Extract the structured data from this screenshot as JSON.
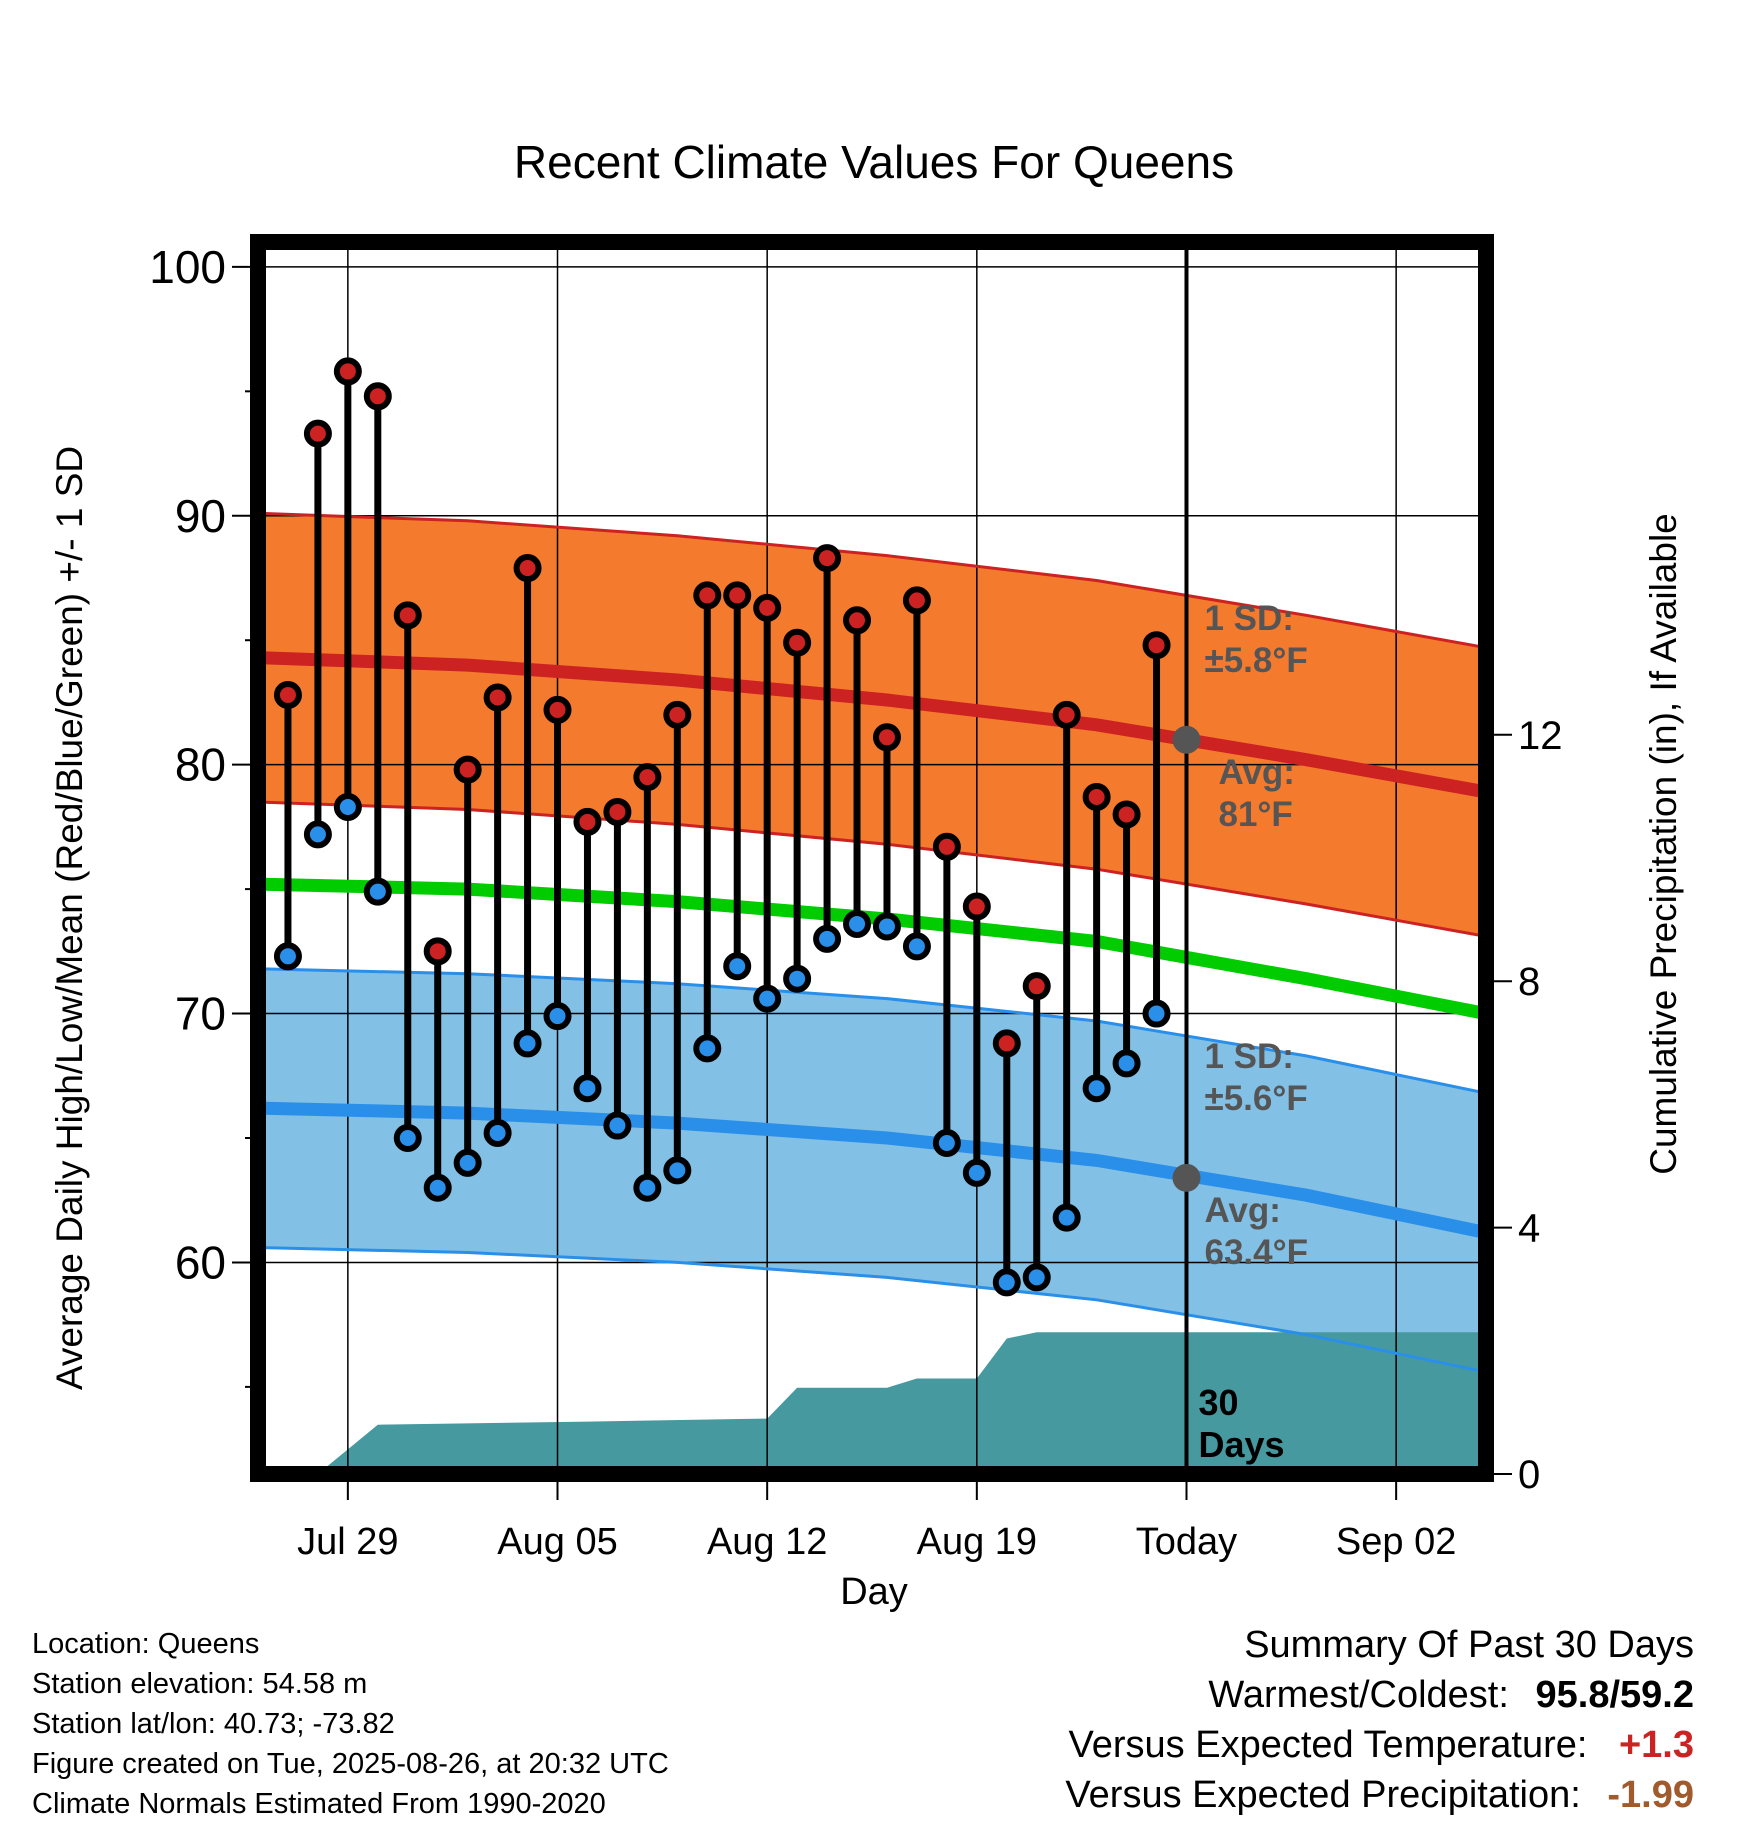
{
  "colors": {
    "high": "#cc2222",
    "low": "#2a8fe8",
    "mean": "#00cc00",
    "high_band": "#f47a2e",
    "low_band": "#82c0e6",
    "precip": "#46999f",
    "annotation": "#555555",
    "temp_anomaly": "#cc2222",
    "precip_anomaly": "#a05a2c"
  },
  "chart_data": {
    "type": "line",
    "title": "Recent Climate Values For Queens",
    "xlabel": "Day",
    "ylabel": "Average Daily High/Low/Mean (Red/Blue/Green) +/- 1 SD",
    "y2label": "Cumulative Precipitation (in), If Available",
    "xlim": [
      "2025-07-26",
      "2025-09-05"
    ],
    "ylim": [
      51.5,
      101
    ],
    "y2lim": [
      0,
      20
    ],
    "y_ticks": [
      60,
      70,
      80,
      90,
      100
    ],
    "y2_ticks": [
      0,
      4,
      8,
      12
    ],
    "x_ticks": [
      {
        "date": "2025-07-29",
        "label": "Jul 29"
      },
      {
        "date": "2025-08-05",
        "label": "Aug 05"
      },
      {
        "date": "2025-08-12",
        "label": "Aug 12"
      },
      {
        "date": "2025-08-19",
        "label": "Aug 19"
      },
      {
        "date": "2025-08-26",
        "label": "Today"
      },
      {
        "date": "2025-09-02",
        "label": "Sep 02"
      }
    ],
    "grid": true,
    "today": "2025-08-26",
    "daily": {
      "dates": [
        "2025-07-27",
        "2025-07-28",
        "2025-07-29",
        "2025-07-30",
        "2025-07-31",
        "2025-08-01",
        "2025-08-02",
        "2025-08-03",
        "2025-08-04",
        "2025-08-05",
        "2025-08-06",
        "2025-08-07",
        "2025-08-08",
        "2025-08-09",
        "2025-08-10",
        "2025-08-11",
        "2025-08-12",
        "2025-08-13",
        "2025-08-14",
        "2025-08-15",
        "2025-08-16",
        "2025-08-17",
        "2025-08-18",
        "2025-08-19",
        "2025-08-20",
        "2025-08-21",
        "2025-08-22",
        "2025-08-23",
        "2025-08-24",
        "2025-08-25"
      ],
      "high": [
        82.8,
        93.3,
        95.8,
        94.8,
        86.0,
        72.5,
        79.8,
        82.7,
        87.9,
        82.2,
        77.7,
        78.1,
        79.5,
        82.0,
        86.8,
        86.8,
        86.3,
        84.9,
        88.3,
        85.8,
        81.1,
        86.6,
        76.7,
        74.3,
        68.8,
        71.1,
        82.0,
        78.7,
        78.0,
        84.8
      ],
      "low": [
        72.3,
        77.2,
        78.3,
        74.9,
        65.0,
        63.0,
        64.0,
        65.2,
        68.8,
        69.9,
        67.0,
        65.5,
        63.0,
        63.7,
        68.6,
        71.9,
        70.6,
        71.4,
        73.0,
        73.6,
        73.5,
        72.7,
        64.8,
        63.6,
        59.2,
        59.4,
        61.8,
        67.0,
        68.0,
        70.0
      ]
    },
    "normals": {
      "dates": [
        "2025-07-26",
        "2025-08-02",
        "2025-08-09",
        "2025-08-16",
        "2025-08-23",
        "2025-08-30",
        "2025-09-05"
      ],
      "high_avg": [
        84.3,
        84.0,
        83.4,
        82.6,
        81.6,
        80.2,
        78.9
      ],
      "high_sd": 5.8,
      "low_avg": [
        66.2,
        66.0,
        65.6,
        65.0,
        64.1,
        62.7,
        61.2
      ],
      "low_sd": 5.6,
      "mean_avg": [
        75.2,
        75.0,
        74.5,
        73.8,
        72.9,
        71.4,
        70.0
      ]
    },
    "precip_cumulative": {
      "dates": [
        "2025-07-26",
        "2025-07-28",
        "2025-07-30",
        "2025-08-06",
        "2025-08-12",
        "2025-08-13",
        "2025-08-16",
        "2025-08-17",
        "2025-08-19",
        "2025-08-20",
        "2025-08-21",
        "2025-09-05"
      ],
      "values": [
        0,
        0,
        0.8,
        0.85,
        0.9,
        1.4,
        1.4,
        1.55,
        1.55,
        2.2,
        2.3,
        2.3
      ]
    },
    "annotations": {
      "high_sd_label": "1 SD:",
      "high_sd_value": "±5.8°F",
      "high_avg_label": "Avg:",
      "high_avg_value": "81°F",
      "high_avg_point": 81.0,
      "low_sd_label": "1 SD:",
      "low_sd_value": "±5.6°F",
      "low_avg_label": "Avg:",
      "low_avg_value": "63.4°F",
      "low_avg_point": 63.4,
      "window_label_1": "30",
      "window_label_2": "Days"
    }
  },
  "footer": {
    "location": "Location: Queens",
    "elevation": "Station elevation: 54.58 m",
    "latlon": "Station lat/lon: 40.73; -73.82",
    "created": "Figure created on Tue, 2025-08-26, at 20:32 UTC",
    "normals": "Climate Normals Estimated From 1990-2020"
  },
  "summary": {
    "title": "Summary Of Past 30 Days",
    "warm_cold_label": "Warmest/Coldest:",
    "warm_value": "95.8",
    "cold_value": "59.2",
    "temp_label": "Versus Expected Temperature:",
    "temp_value": "+1.3",
    "precip_label": "Versus Expected Precipitation:",
    "precip_value": "-1.99"
  }
}
